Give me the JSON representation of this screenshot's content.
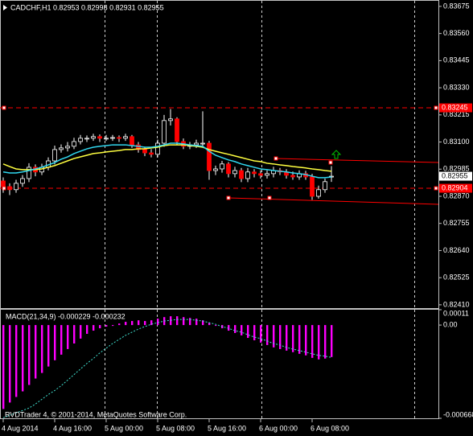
{
  "chart_data": [
    {
      "type": "candlestick",
      "title": "CADCHF,H1 0.82953 0.82998 0.82931 0.82955",
      "open": [
        0.82935,
        0.82911,
        0.82898,
        0.82925,
        0.82945,
        0.82993,
        0.82973,
        0.82993,
        0.8302,
        0.83068,
        0.83075,
        0.83082,
        0.83102,
        0.83116,
        0.83116,
        0.83123,
        0.83116,
        0.83116,
        0.83119,
        0.83116,
        0.83123,
        0.83088,
        0.83068,
        0.83054,
        0.83048,
        0.83095,
        0.83191,
        0.83198,
        0.83102,
        0.83082,
        0.83088,
        0.83095,
        0.83095,
        0.82979,
        0.82986,
        0.83007,
        0.82966,
        0.82979,
        0.82945,
        0.82973,
        0.82966,
        0.82959,
        0.82966,
        0.82979,
        0.82973,
        0.82959,
        0.82952,
        0.82966,
        0.82952,
        0.8287,
        0.82898,
        0.82953
      ],
      "high": [
        0.8295,
        0.82925,
        0.8294,
        0.8296,
        0.8301,
        0.83005,
        0.83008,
        0.83035,
        0.83085,
        0.8309,
        0.831,
        0.83118,
        0.8313,
        0.83128,
        0.83135,
        0.83132,
        0.8313,
        0.8313,
        0.83128,
        0.83135,
        0.8313,
        0.831,
        0.8308,
        0.8307,
        0.8311,
        0.83215,
        0.8324,
        0.83205,
        0.83115,
        0.831,
        0.8311,
        0.8323,
        0.83105,
        0.83,
        0.8302,
        0.83015,
        0.82995,
        0.8299,
        0.8299,
        0.82985,
        0.8298,
        0.8298,
        0.82995,
        0.8299,
        0.82985,
        0.82975,
        0.8298,
        0.82978,
        0.82965,
        0.82915,
        0.82945,
        0.82998
      ],
      "low": [
        0.82885,
        0.82875,
        0.82885,
        0.8291,
        0.8293,
        0.82955,
        0.8296,
        0.8298,
        0.83005,
        0.83055,
        0.8306,
        0.8307,
        0.8309,
        0.831,
        0.83105,
        0.831,
        0.83105,
        0.83105,
        0.831,
        0.83105,
        0.83075,
        0.83055,
        0.8304,
        0.83035,
        0.83035,
        0.8308,
        0.8317,
        0.8309,
        0.8307,
        0.8307,
        0.83075,
        0.8308,
        0.8294,
        0.8296,
        0.8297,
        0.8295,
        0.8295,
        0.8293,
        0.8293,
        0.8295,
        0.82945,
        0.82945,
        0.8295,
        0.8296,
        0.82945,
        0.8294,
        0.8294,
        0.8294,
        0.82855,
        0.8286,
        0.82885,
        0.82931
      ],
      "close": [
        0.82911,
        0.82898,
        0.82925,
        0.82945,
        0.82993,
        0.82973,
        0.82993,
        0.8302,
        0.83068,
        0.83075,
        0.83082,
        0.83102,
        0.83116,
        0.83116,
        0.83123,
        0.83116,
        0.83116,
        0.83119,
        0.83116,
        0.83123,
        0.83088,
        0.83068,
        0.83054,
        0.83048,
        0.83095,
        0.83191,
        0.83198,
        0.83102,
        0.83082,
        0.83088,
        0.83095,
        0.83095,
        0.82979,
        0.82986,
        0.83007,
        0.82966,
        0.82979,
        0.82945,
        0.82973,
        0.82966,
        0.82959,
        0.82966,
        0.82979,
        0.82973,
        0.82959,
        0.82952,
        0.82966,
        0.82952,
        0.8287,
        0.82898,
        0.82932,
        0.82955
      ],
      "up_color": "#000000",
      "down_color": "#ff0000",
      "wick_color": "#ffffff",
      "series": [
        {
          "color": "#ffff40",
          "values": [
            0.83007,
            0.82996,
            0.82986,
            0.82983,
            0.82983,
            0.82983,
            0.82986,
            0.82993,
            0.83,
            0.8301,
            0.8302,
            0.8303,
            0.83037,
            0.83044,
            0.83051,
            0.83054,
            0.83058,
            0.83061,
            0.83064,
            0.83068,
            0.83068,
            0.83071,
            0.83071,
            0.83075,
            0.83078,
            0.83085,
            0.83088,
            0.83088,
            0.83088,
            0.83085,
            0.83082,
            0.83078,
            0.83068,
            0.83061,
            0.83054,
            0.83048,
            0.83041,
            0.83034,
            0.83027,
            0.8302,
            0.83017,
            0.8301,
            0.83007,
            0.83003,
            0.83,
            0.82996,
            0.82993,
            0.8299,
            0.82986,
            0.82983,
            0.82979,
            0.82976
          ]
        },
        {
          "color": "#30d8f0",
          "values": [
            0.82973,
            0.82969,
            0.82969,
            0.82973,
            0.82979,
            0.82986,
            0.82993,
            0.83003,
            0.83013,
            0.83027,
            0.83037,
            0.83051,
            0.83061,
            0.83071,
            0.83078,
            0.83082,
            0.83085,
            0.83088,
            0.83088,
            0.83088,
            0.83085,
            0.83082,
            0.83078,
            0.83078,
            0.83082,
            0.83088,
            0.83095,
            0.83095,
            0.83092,
            0.83088,
            0.83085,
            0.83082,
            0.83061,
            0.83044,
            0.83034,
            0.83024,
            0.83017,
            0.83007,
            0.83,
            0.82993,
            0.82986,
            0.82983,
            0.82979,
            0.82976,
            0.82973,
            0.82969,
            0.82966,
            0.82962,
            0.82955,
            0.82949,
            0.82949,
            0.82952
          ]
        }
      ],
      "levels": [
        0.83245,
        0.82904
      ],
      "level_color": "#ff0000",
      "current_price": 0.82955,
      "xlim": [
        -0.5,
        67.625
      ],
      "xticks": [
        {
          "value": 0,
          "label": "4 Aug 2014"
        },
        {
          "value": 8,
          "label": "4 Aug 16:00"
        },
        {
          "value": 16,
          "label": "5 Aug 00:00"
        },
        {
          "value": 24,
          "label": "5 Aug 08:00"
        },
        {
          "value": 32,
          "label": "5 Aug 16:00"
        },
        {
          "value": 40,
          "label": "6 Aug 00:00"
        },
        {
          "value": 48,
          "label": "6 Aug 08:00"
        }
      ],
      "ylim": [
        0.82396,
        0.83702
      ],
      "yticks": [
        0.83675,
        {
          "value": 0.8356,
          "label": "0.83560"
        },
        0.83445,
        {
          "value": 0.8333,
          "label": "0.83330"
        },
        0.83215,
        {
          "value": 0.831,
          "label": "0.83100"
        },
        0.82985,
        {
          "value": 0.8287,
          "label": "0.82870"
        },
        0.82755,
        {
          "value": 0.8264,
          "label": "0.82640"
        },
        0.82525,
        {
          "value": 0.8241,
          "label": "0.82410"
        }
      ]
    },
    {
      "type": "bar",
      "title": "MACD(21,34,9) -0.000229 -0.000232",
      "annotation": "RVDTrader 4, © 2001-2014, MetaQuotes Software Corp.",
      "color": "#ff00ff",
      "values": [
        -0.000601,
        -0.000555,
        -0.000515,
        -0.000475,
        -0.000429,
        -0.000383,
        -0.000343,
        -0.000297,
        -0.000252,
        -0.000212,
        -0.000172,
        -0.000132,
        -9.7e-05,
        -6.3e-05,
        -4e-05,
        -2.3e-05,
        -1.1e-05,
        -6e-06,
        1.1e-05,
        2.3e-05,
        2.9e-05,
        3.4e-05,
        2.9e-05,
        3.4e-05,
        4.6e-05,
        5.7e-05,
        6.3e-05,
        6.3e-05,
        5.7e-05,
        5.1e-05,
        4.6e-05,
        3.4e-05,
        1.7e-05,
        -6e-06,
        -2.3e-05,
        -4e-05,
        -5.7e-05,
        -7.4e-05,
        -9.2e-05,
        -0.000109,
        -0.000126,
        -0.000143,
        -0.00016,
        -0.000172,
        -0.000183,
        -0.000194,
        -0.000206,
        -0.000217,
        -0.000235,
        -0.000246,
        -0.00024,
        -0.000229
      ],
      "series": [
        {
          "color": "#40e0d0",
          "values": [
            -0.000664,
            -0.000646,
            -0.000629,
            -0.000612,
            -0.000595,
            -0.000566,
            -0.000532,
            -0.000498,
            -0.000469,
            -0.000435,
            -0.000395,
            -0.000355,
            -0.000315,
            -0.000275,
            -0.00024,
            -0.0002,
            -0.000166,
            -0.000132,
            -0.000103,
            -7.4e-05,
            -5.1e-05,
            -2.9e-05,
            -1.1e-05,
            6e-06,
            1.7e-05,
            2.9e-05,
            3.4e-05,
            4e-05,
            4e-05,
            4e-05,
            3.4e-05,
            2.9e-05,
            1.7e-05,
            6e-06,
            -1.1e-05,
            -2.3e-05,
            -4e-05,
            -5.1e-05,
            -6.9e-05,
            -8.6e-05,
            -9.7e-05,
            -0.000114,
            -0.000132,
            -0.000143,
            -0.00016,
            -0.000172,
            -0.000183,
            -0.000194,
            -0.000206,
            -0.000217,
            -0.000223,
            -0.000232
          ]
        }
      ],
      "ylim": [
        -0.000668,
        0.00011
      ],
      "yticks": [
        0.00011,
        {
          "value": 0,
          "label": "0.00"
        },
        -0.000668
      ]
    }
  ]
}
